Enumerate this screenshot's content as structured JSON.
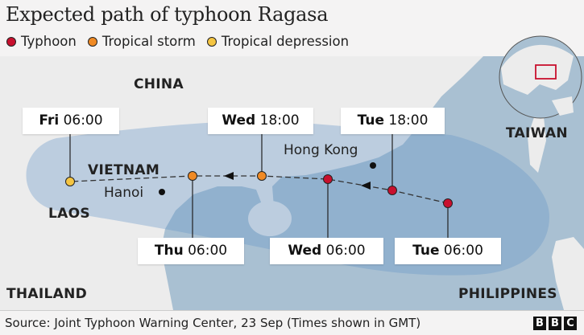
{
  "title": "Expected path of typhoon Ragasa",
  "legend": [
    {
      "label": "Typhoon",
      "color": "#c8102e"
    },
    {
      "label": "Tropical storm",
      "color": "#f08a24"
    },
    {
      "label": "Tropical depression",
      "color": "#f5c542"
    }
  ],
  "track_points": [
    {
      "day": "Tue",
      "time": "06:00",
      "category": "Typhoon"
    },
    {
      "day": "Tue",
      "time": "18:00",
      "category": "Typhoon"
    },
    {
      "day": "Wed",
      "time": "06:00",
      "category": "Typhoon"
    },
    {
      "day": "Wed",
      "time": "18:00",
      "category": "Tropical storm"
    },
    {
      "day": "Thu",
      "time": "06:00",
      "category": "Tropical storm"
    },
    {
      "day": "Fri",
      "time": "06:00",
      "category": "Tropical depression"
    }
  ],
  "places": {
    "china": "CHINA",
    "taiwan": "TAIWAN",
    "vietnam": "VIETNAM",
    "laos": "LAOS",
    "thailand": "THAILAND",
    "philippines": "PHILIPPINES",
    "hong_kong": "Hong Kong",
    "hanoi": "Hanoi"
  },
  "colors": {
    "land": "#ececec",
    "sea": "#a9c0d2",
    "cone": "#6496c8"
  },
  "footer": {
    "source": "Source: Joint Typhoon Warning Center, 23 Sep (Times shown in GMT)",
    "logo": "BBC"
  }
}
